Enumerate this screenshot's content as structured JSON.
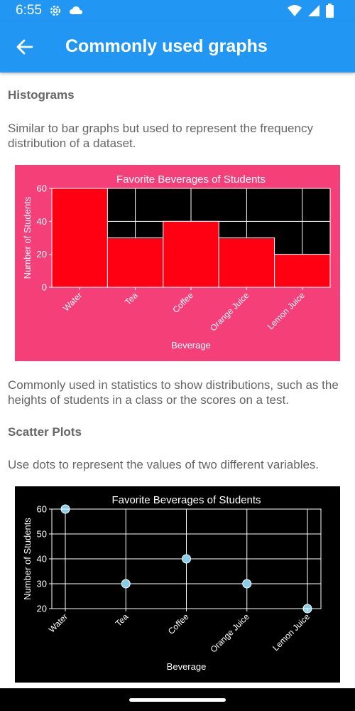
{
  "status_bar": {
    "time": "6:55",
    "icons": [
      "gear-icon",
      "cloud-icon",
      "wifi-icon",
      "signal-icon",
      "battery-icon"
    ]
  },
  "app_bar": {
    "title": "Commonly used graphs",
    "back_icon": "arrow-back-icon"
  },
  "sections": {
    "histograms": {
      "heading": "Histograms",
      "intro": "Similar to bar graphs but used to represent the frequency distribution of a dataset.",
      "outro": "Commonly used in statistics to show distributions, such as the heights of students in a class or the scores on a test."
    },
    "scatter": {
      "heading": "Scatter Plots",
      "intro": "Use dots to represent the values of two different variables."
    }
  },
  "colors": {
    "primary": "#2196F3",
    "histogram_bg": "#F43F79",
    "bar_fill": "#FF0013",
    "scatter_bg": "#000000",
    "dot_fill": "#87CEEB"
  },
  "chart_data": [
    {
      "type": "bar",
      "title": "Favorite Beverages of Students",
      "xlabel": "Beverage",
      "ylabel": "Number of Students",
      "categories": [
        "Water",
        "Tea",
        "Coffee",
        "Orange Juice",
        "Lemon Juice"
      ],
      "values": [
        60,
        30,
        40,
        30,
        20
      ],
      "ylim": [
        0,
        60
      ],
      "yticks": [
        "0",
        "20",
        "40",
        "60"
      ],
      "grid": true
    },
    {
      "type": "scatter",
      "title": "Favorite Beverages of Students",
      "xlabel": "Beverage",
      "ylabel": "Number of Students",
      "categories": [
        "Water",
        "Tea",
        "Coffee",
        "Orange Juice",
        "Lemon Juice"
      ],
      "values": [
        60,
        30,
        40,
        30,
        20
      ],
      "ylim": [
        20,
        60
      ],
      "yticks": [
        "20",
        "30",
        "40",
        "50",
        "60"
      ],
      "grid": true
    }
  ]
}
